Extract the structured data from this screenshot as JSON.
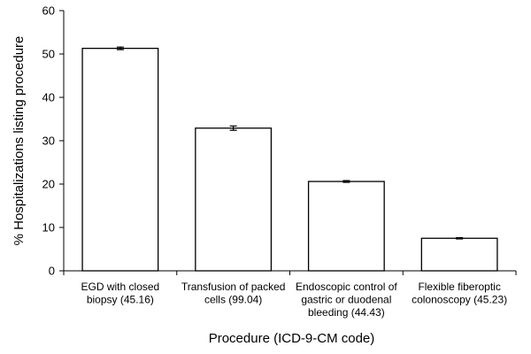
{
  "chart_data": {
    "type": "bar",
    "title": "",
    "xlabel": "Procedure (ICD-9-CM code)",
    "ylabel": "% Hospitalizations listing procedure",
    "ylim": [
      0,
      60
    ],
    "yticks": [
      0,
      10,
      20,
      30,
      40,
      50,
      60
    ],
    "categories": [
      [
        "EGD with closed",
        "biopsy (45.16)"
      ],
      [
        "Transfusion of packed",
        "cells (99.04)"
      ],
      [
        "Endoscopic control of",
        "gastric or duodenal",
        "bleeding (44.43)"
      ],
      [
        "Flexible fiberoptic",
        "colonoscopy (45.23)"
      ]
    ],
    "values": [
      51.3,
      32.9,
      20.6,
      7.5
    ],
    "error": [
      0.3,
      0.5,
      0.2,
      0.15
    ],
    "bar_fill": "#ffffff",
    "bar_stroke": "#000000",
    "grid": false,
    "legend": "none"
  }
}
